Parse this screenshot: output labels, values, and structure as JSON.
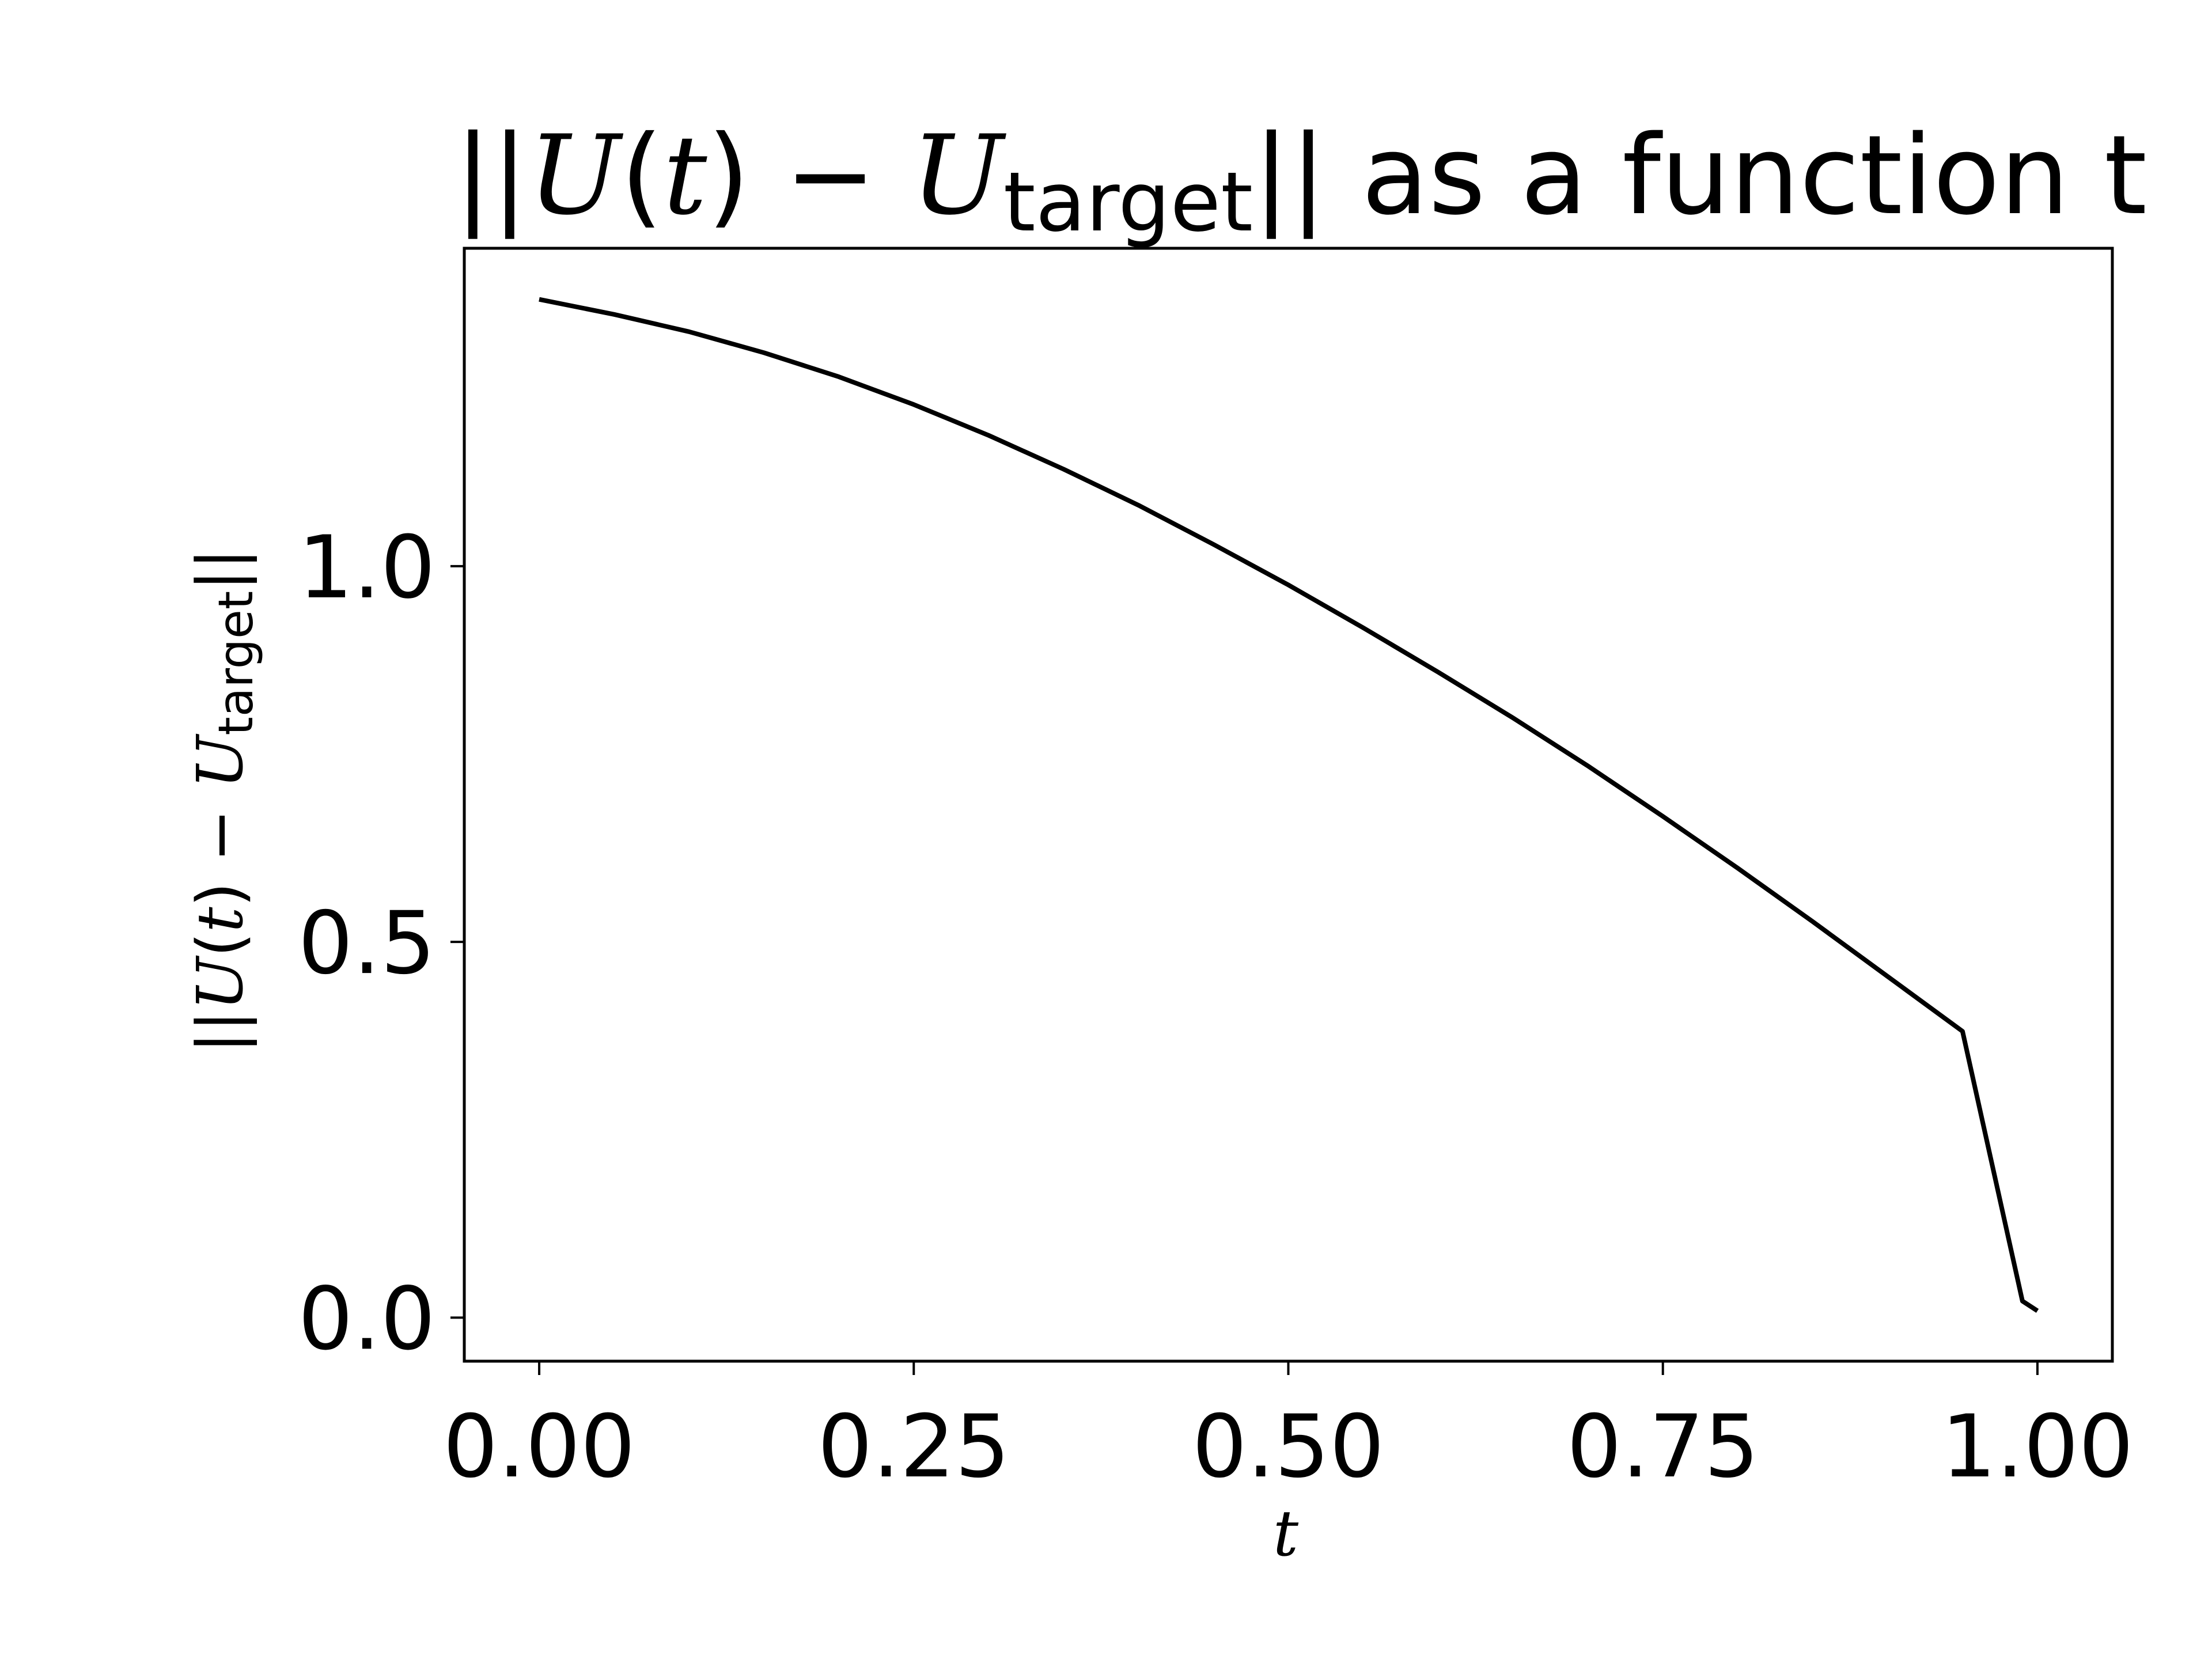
{
  "chart_data": {
    "type": "line",
    "title": {
      "norm_open": "||",
      "U": "U",
      "paren_open": "(",
      "t": "t",
      "paren_close": ")",
      "minus": " − ",
      "U2": "U",
      "sub": "target",
      "norm_close": "||",
      "suffix": " as a function t"
    },
    "xlabel": "t",
    "ylabel": {
      "norm_open": "||",
      "U": "U",
      "paren_open": "(",
      "t": "t",
      "paren_close": ")",
      "minus": " − ",
      "U2": "U",
      "sub": "target",
      "norm_close": "||"
    },
    "xlim": [
      -0.05,
      1.05
    ],
    "ylim": [
      -0.058,
      1.423
    ],
    "xticks": [
      0.0,
      0.25,
      0.5,
      0.75,
      1.0
    ],
    "xtick_labels": [
      "0.00",
      "0.25",
      "0.50",
      "0.75",
      "1.00"
    ],
    "yticks": [
      0.0,
      0.5,
      1.0
    ],
    "ytick_labels": [
      "0.0",
      "0.5",
      "1.0"
    ],
    "grid": false,
    "line_color": "#000000",
    "series": [
      {
        "x": [
          0.0,
          0.05,
          0.1,
          0.15,
          0.2,
          0.25,
          0.3,
          0.35,
          0.4,
          0.45,
          0.5,
          0.55,
          0.6,
          0.65,
          0.7,
          0.75,
          0.8,
          0.85,
          0.9,
          0.95,
          0.99,
          1.0
        ],
        "values": [
          1.355,
          1.335,
          1.312,
          1.284,
          1.252,
          1.215,
          1.174,
          1.129,
          1.081,
          1.029,
          0.975,
          0.918,
          0.859,
          0.798,
          0.734,
          0.667,
          0.598,
          0.527,
          0.454,
          0.381,
          0.022,
          0.009
        ]
      }
    ]
  }
}
